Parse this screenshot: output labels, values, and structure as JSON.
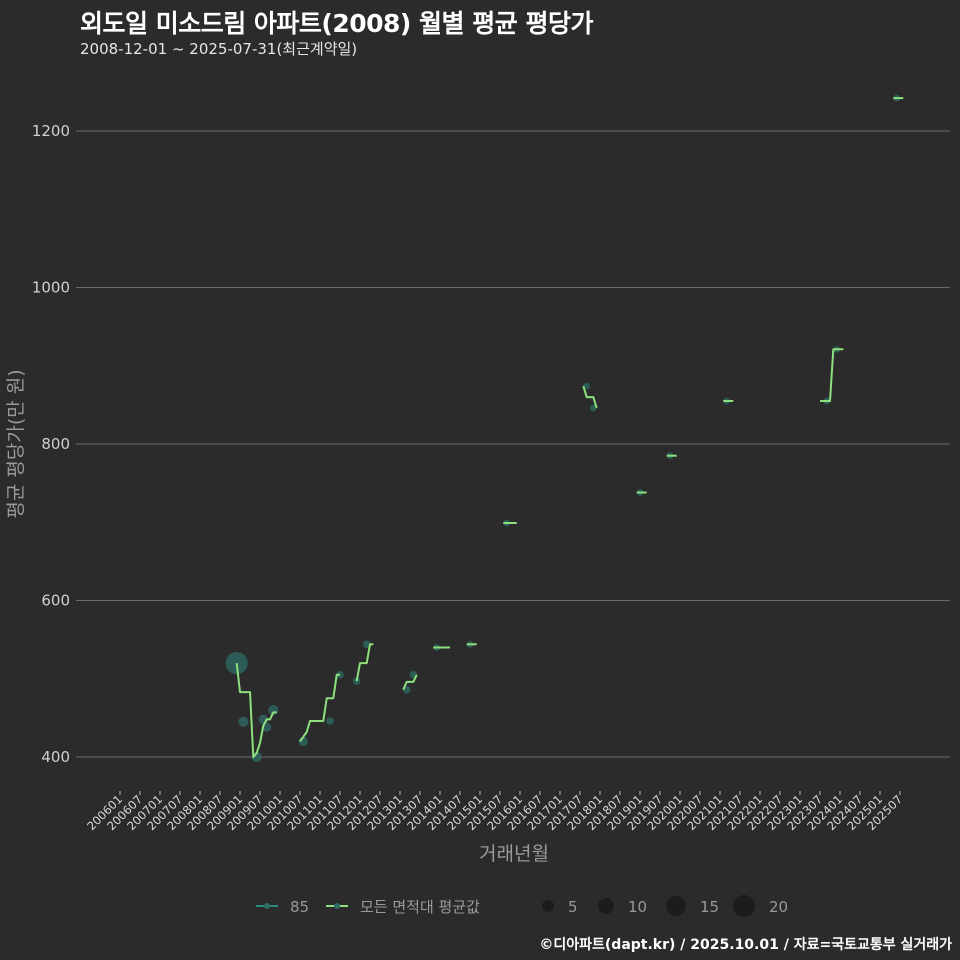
{
  "header": {
    "title": "외도일 미소드림 아파트(2008) 월별 평균 평당가",
    "subtitle": "2008-12-01 ~ 2025-07-31(최근계약일)"
  },
  "footer": {
    "credit": "©디아파트(dapt.kr) / 2025.10.01 / 자료=국토교통부 실거래가"
  },
  "colors": {
    "background": "#2b2b2c",
    "grid": "#6a6a6a",
    "series_85": "#2a8a80",
    "series_avg": "#8ee07f",
    "bubble": "#2f6e66"
  },
  "legend": {
    "series": [
      {
        "label": "85",
        "color": "#2a8a80"
      },
      {
        "label": "모든 면적대 평균값",
        "color": "#8ee07f"
      }
    ],
    "sizes": [
      {
        "label": "5",
        "r": 6
      },
      {
        "label": "10",
        "r": 8
      },
      {
        "label": "15",
        "r": 10
      },
      {
        "label": "20",
        "r": 11
      }
    ]
  },
  "chart_data": {
    "type": "line",
    "title": "외도일 미소드림 아파트(2008) 월별 평균 평당가",
    "subtitle": "2008-12-01 ~ 2025-07-31(최근계약일)",
    "xlabel": "거래년월",
    "ylabel": "평균 평당가(만 원)",
    "ylim": [
      360,
      1270
    ],
    "yticks": [
      400,
      600,
      800,
      1000,
      1200
    ],
    "xticks": [
      "200601",
      "200607",
      "200701",
      "200707",
      "200801",
      "200807",
      "200901",
      "200907",
      "201001",
      "201007",
      "201101",
      "201107",
      "201201",
      "201207",
      "201301",
      "201307",
      "201401",
      "201407",
      "201501",
      "201507",
      "201601",
      "201607",
      "201701",
      "201707",
      "201801",
      "201807",
      "201901",
      "201907",
      "202001",
      "202007",
      "202101",
      "202107",
      "202201",
      "202207",
      "202301",
      "202307",
      "202401",
      "202407",
      "202501",
      "202507"
    ],
    "grid": true,
    "legend_position": "bottom",
    "series": [
      {
        "name": "85",
        "type": "scatter-bubble",
        "points": [
          {
            "x": "200812",
            "y": 520,
            "n": 20
          },
          {
            "x": "200902",
            "y": 445,
            "n": 6
          },
          {
            "x": "200906",
            "y": 400,
            "n": 6
          },
          {
            "x": "200908",
            "y": 448,
            "n": 5
          },
          {
            "x": "200909",
            "y": 438,
            "n": 5
          },
          {
            "x": "200911",
            "y": 460,
            "n": 6
          },
          {
            "x": "201008",
            "y": 420,
            "n": 5
          },
          {
            "x": "201104",
            "y": 446,
            "n": 3
          },
          {
            "x": "201107",
            "y": 505,
            "n": 3
          },
          {
            "x": "201112",
            "y": 497,
            "n": 3
          },
          {
            "x": "201203",
            "y": 544,
            "n": 3
          },
          {
            "x": "201303",
            "y": 486,
            "n": 3
          },
          {
            "x": "201305",
            "y": 505,
            "n": 3
          },
          {
            "x": "201312",
            "y": 540,
            "n": 2
          },
          {
            "x": "201410",
            "y": 544,
            "n": 2
          },
          {
            "x": "201509",
            "y": 699,
            "n": 2
          },
          {
            "x": "201709",
            "y": 874,
            "n": 2
          },
          {
            "x": "201711",
            "y": 846,
            "n": 2
          },
          {
            "x": "201901",
            "y": 738,
            "n": 2
          },
          {
            "x": "201910",
            "y": 785,
            "n": 2
          },
          {
            "x": "202103",
            "y": 855,
            "n": 2
          },
          {
            "x": "202309",
            "y": 855,
            "n": 2
          },
          {
            "x": "202312",
            "y": 921,
            "n": 2
          },
          {
            "x": "202506",
            "y": 1242,
            "n": 2
          }
        ]
      },
      {
        "name": "모든 면적대 평균값",
        "type": "step",
        "segments": [
          [
            [
              "200812",
              520
            ],
            [
              "200901",
              483
            ],
            [
              "200904",
              483
            ],
            [
              "200905",
              400
            ],
            [
              "200906",
              405
            ],
            [
              "200907",
              418
            ],
            [
              "200908",
              440
            ],
            [
              "200909",
              448
            ],
            [
              "200910",
              448
            ],
            [
              "200911",
              457
            ],
            [
              "200912",
              457
            ]
          ],
          [
            [
              "201007",
              420
            ],
            [
              "201009",
              432
            ],
            [
              "201010",
              446
            ],
            [
              "201102",
              446
            ],
            [
              "201103",
              475
            ],
            [
              "201105",
              475
            ],
            [
              "201106",
              505
            ],
            [
              "201107",
              505
            ]
          ],
          [
            [
              "201112",
              497
            ],
            [
              "201201",
              520
            ],
            [
              "201203",
              520
            ],
            [
              "201204",
              544
            ],
            [
              "201205",
              544
            ]
          ],
          [
            [
              "201302",
              486
            ],
            [
              "201303",
              496
            ],
            [
              "201305",
              496
            ],
            [
              "201306",
              505
            ]
          ],
          [
            [
              "201311",
              540
            ],
            [
              "201404",
              540
            ]
          ],
          [
            [
              "201409",
              544
            ],
            [
              "201412",
              544
            ]
          ],
          [
            [
              "201508",
              699
            ],
            [
              "201512",
              699
            ]
          ],
          [
            [
              "201708",
              874
            ],
            [
              "201709",
              860
            ],
            [
              "201711",
              860
            ],
            [
              "201712",
              846
            ]
          ],
          [
            [
              "201812",
              738
            ],
            [
              "201903",
              738
            ]
          ],
          [
            [
              "201909",
              785
            ],
            [
              "201912",
              785
            ]
          ],
          [
            [
              "202102",
              855
            ],
            [
              "202105",
              855
            ]
          ],
          [
            [
              "202307",
              855
            ],
            [
              "202310",
              855
            ],
            [
              "202311",
              921
            ],
            [
              "202402",
              921
            ]
          ],
          [
            [
              "202505",
              1242
            ],
            [
              "202508",
              1242
            ]
          ]
        ]
      }
    ]
  }
}
